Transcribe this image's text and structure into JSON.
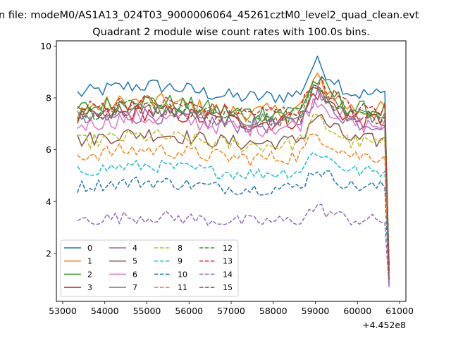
{
  "figure": {
    "suptitle": "n file: modeM0/AS1A13_024T03_9000006064_45261cztM0_level2_quad_clean.evt",
    "offset_text": "+4.452e8"
  },
  "chart_data": {
    "type": "line",
    "title": "Quadrant 2 module wise count rates with 100.0s bins.",
    "xlabel": "",
    "ylabel": "",
    "xlim": [
      52850,
      61150
    ],
    "ylim": [
      0.15,
      10.2
    ],
    "x_start": 53350,
    "x_step": 100,
    "x_end": 60750,
    "xticks": [
      53000,
      54000,
      55000,
      56000,
      57000,
      58000,
      59000,
      60000,
      61000
    ],
    "xtick_labels": [
      "53000",
      "54000",
      "55000",
      "56000",
      "57000",
      "58000",
      "59000",
      "60000",
      "61000"
    ],
    "yticks": [
      2,
      4,
      6,
      8,
      10
    ],
    "ytick_labels": [
      "2",
      "4",
      "6",
      "8",
      "10"
    ],
    "grid": false,
    "legend": {
      "position": "lower-left",
      "columns": 4
    },
    "series": [
      {
        "name": "0",
        "base": 8.2,
        "amp": 0.3,
        "color": "#1f77b4",
        "dash": "solid"
      },
      {
        "name": "1",
        "base": 7.6,
        "amp": 0.35,
        "color": "#ff7f0e",
        "dash": "solid"
      },
      {
        "name": "2",
        "base": 7.6,
        "amp": 0.35,
        "color": "#2ca02c",
        "dash": "solid"
      },
      {
        "name": "3",
        "base": 7.2,
        "amp": 0.35,
        "color": "#d62728",
        "dash": "solid"
      },
      {
        "name": "4",
        "base": 7.1,
        "amp": 0.35,
        "color": "#9467bd",
        "dash": "solid"
      },
      {
        "name": "5",
        "base": 6.4,
        "amp": 0.3,
        "color": "#8c564b",
        "dash": "solid"
      },
      {
        "name": "6",
        "base": 7.0,
        "amp": 0.35,
        "color": "#e377c2",
        "dash": "solid"
      },
      {
        "name": "7",
        "base": 7.3,
        "amp": 0.3,
        "color": "#7f7f7f",
        "dash": "solid"
      },
      {
        "name": "8",
        "base": 6.3,
        "amp": 0.3,
        "color": "#bcbd22",
        "dash": "dashed"
      },
      {
        "name": "9",
        "base": 5.2,
        "amp": 0.25,
        "color": "#17becf",
        "dash": "dashed"
      },
      {
        "name": "10",
        "base": 4.6,
        "amp": 0.25,
        "color": "#1f77b4",
        "dash": "dashed"
      },
      {
        "name": "11",
        "base": 5.8,
        "amp": 0.3,
        "color": "#ff7f0e",
        "dash": "dashed"
      },
      {
        "name": "12",
        "base": 7.4,
        "amp": 0.3,
        "color": "#2ca02c",
        "dash": "dashed"
      },
      {
        "name": "13",
        "base": 7.6,
        "amp": 0.3,
        "color": "#d62728",
        "dash": "dashed"
      },
      {
        "name": "14",
        "base": 3.3,
        "amp": 0.25,
        "color": "#9467bd",
        "dash": "dashed"
      },
      {
        "name": "15",
        "base": 7.3,
        "amp": 0.3,
        "color": "#8c564b",
        "dash": "dashed"
      }
    ],
    "end_values": [
      0.8,
      1.6,
      1.5,
      1.2,
      0.8,
      0.9,
      1.0,
      1.1,
      0.9,
      1.3,
      0.9,
      0.9,
      1.4,
      1.3,
      0.7,
      1.0
    ]
  }
}
